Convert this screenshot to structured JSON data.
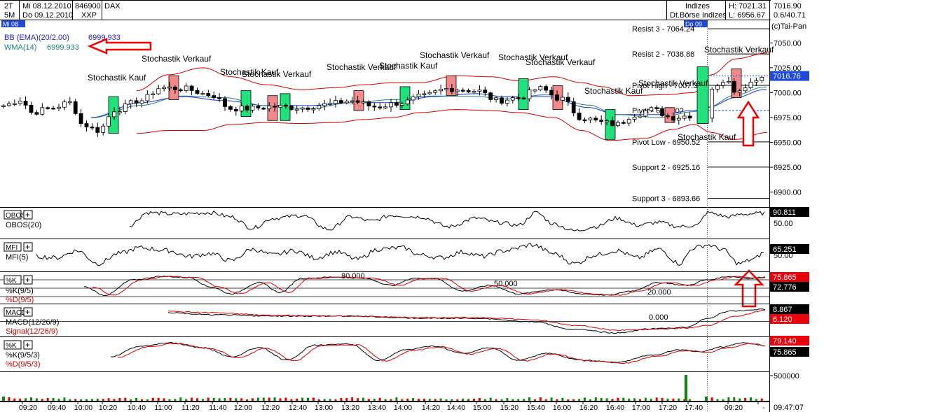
{
  "header": {
    "periods": [
      "2T",
      "5M"
    ],
    "dates": [
      "Mi 08.12.2010",
      "Do 09.12.2010"
    ],
    "codes": [
      "846900",
      "XXP"
    ],
    "symbol": "DAX",
    "market": [
      "Indizes",
      "Dt.Börse Indizes"
    ],
    "high": "H: 7021.31",
    "low": "L: 6956.67",
    "last": "7016.90",
    "change": "0.6/40.71",
    "copyright": "(c)Tai-Pan",
    "day_labels": [
      "Mi 08",
      "Do 09"
    ]
  },
  "chart_data": {
    "type": "candlestick",
    "panes": [
      {
        "name": "price",
        "indicators": [
          {
            "name": "BB (EMA)(20/2.00)",
            "value": "6999.933",
            "color": "#2222cc"
          },
          {
            "name": "WMA(14)",
            "value": "6999.933",
            "color": "#208080"
          }
        ],
        "y_axis": {
          "range": [
            6885,
            7065
          ],
          "ticks": [
            "7050.00",
            "7025.00",
            "7000.00",
            "6975.00",
            "6950.00",
            "6925.00",
            "6900.00"
          ],
          "current": "7016.76"
        },
        "levels": [
          {
            "label": "Resist 3 - 7064.24",
            "value": 7064.24
          },
          {
            "label": "Resist 2 - 7038.88",
            "value": 7038.88
          },
          {
            "label": "Pivot High - 7007.38",
            "value": 7007.38
          },
          {
            "label": "Pivot - 6982.02",
            "value": 6982.02
          },
          {
            "label": "Pivot Low - 6950.52",
            "value": 6950.52
          },
          {
            "label": "Support 2 - 6925.16",
            "value": 6925.16
          },
          {
            "label": "Support 3 - 6893.66",
            "value": 6893.66
          }
        ],
        "annotations": [
          "Stochastik Kauf",
          "Stochastik Verkauf",
          "Stochastik Kauf",
          "Stochastik Verkauf",
          "Stochastik Verkauf",
          "Stochastik Kauf",
          "Stochastik Verkauf",
          "Stochastik Verkauf",
          "Stochastik Verkauf",
          "Stochastik Kauf",
          "Stochastik Verkauf",
          "Stochastik Verkauf",
          "Stochastik Kauf"
        ],
        "highlight_boxes": [
          {
            "color": "green",
            "open": 6996,
            "close": 6959
          },
          {
            "color": "red",
            "open": 6993,
            "close": 7017
          },
          {
            "color": "green",
            "open": 6976,
            "close": 7002
          },
          {
            "color": "red",
            "open": 6972,
            "close": 6997
          },
          {
            "color": "green",
            "open": 6972,
            "close": 6999
          },
          {
            "color": "red",
            "open": 6982,
            "close": 7002
          },
          {
            "color": "green",
            "open": 6983,
            "close": 7006
          },
          {
            "color": "red",
            "open": 6997,
            "close": 7017
          },
          {
            "color": "green",
            "open": 6983,
            "close": 7014
          },
          {
            "color": "red",
            "open": 6983,
            "close": 7007
          },
          {
            "color": "green",
            "open": 6953,
            "close": 6983
          },
          {
            "color": "red",
            "open": 6970,
            "close": 6985
          },
          {
            "color": "green",
            "open": 6969,
            "close": 7026
          },
          {
            "color": "red",
            "open": 6995,
            "close": 7024
          }
        ]
      },
      {
        "name": "OBOS",
        "label": "OBOS(20)",
        "value": "90.811",
        "ticks": [
          "50.00"
        ],
        "value_bg": "#000000"
      },
      {
        "name": "MFI",
        "label": "MFI(5)",
        "value": "65.251",
        "ticks": [
          "50.00"
        ],
        "value_bg": "#000000"
      },
      {
        "name": "%K",
        "labels": [
          "%K(9/5)",
          "%D(9/5)"
        ],
        "values": [
          "75.865",
          "72.776"
        ],
        "value_bgs": [
          "#e8000a",
          "#000000"
        ],
        "levels": [
          "80.000",
          "50.000",
          "20.000"
        ]
      },
      {
        "name": "MACD",
        "labels": [
          "MACD(12/26/9)",
          "Signal(12/26/9)"
        ],
        "values": [
          "8.867",
          "6.120"
        ],
        "value_bgs": [
          "#000000",
          "#e8000a"
        ],
        "levels": [
          "0.000"
        ]
      },
      {
        "name": "%K slow",
        "labels": [
          "%K(9/5/3)",
          "%D(9/5/3)"
        ],
        "values": [
          "79.140",
          "75.865"
        ],
        "value_bgs": [
          "#e8000a",
          "#000000"
        ]
      },
      {
        "name": "volume",
        "ticks": [
          "500000"
        ]
      }
    ],
    "x_labels": [
      "09:20",
      "09:40",
      "10:00",
      "10:20",
      "10:40",
      "11:00",
      "11:20",
      "11:40",
      "12:00",
      "12:20",
      "12:40",
      "13:00",
      "13:20",
      "13:40",
      "14:00",
      "14:20",
      "14:40",
      "15:00",
      "15:20",
      "15:40",
      "16:00",
      "16:20",
      "16:40",
      "17:00",
      "17:20",
      "17:40",
      "09:20",
      "-"
    ],
    "time": "09:47:07"
  }
}
